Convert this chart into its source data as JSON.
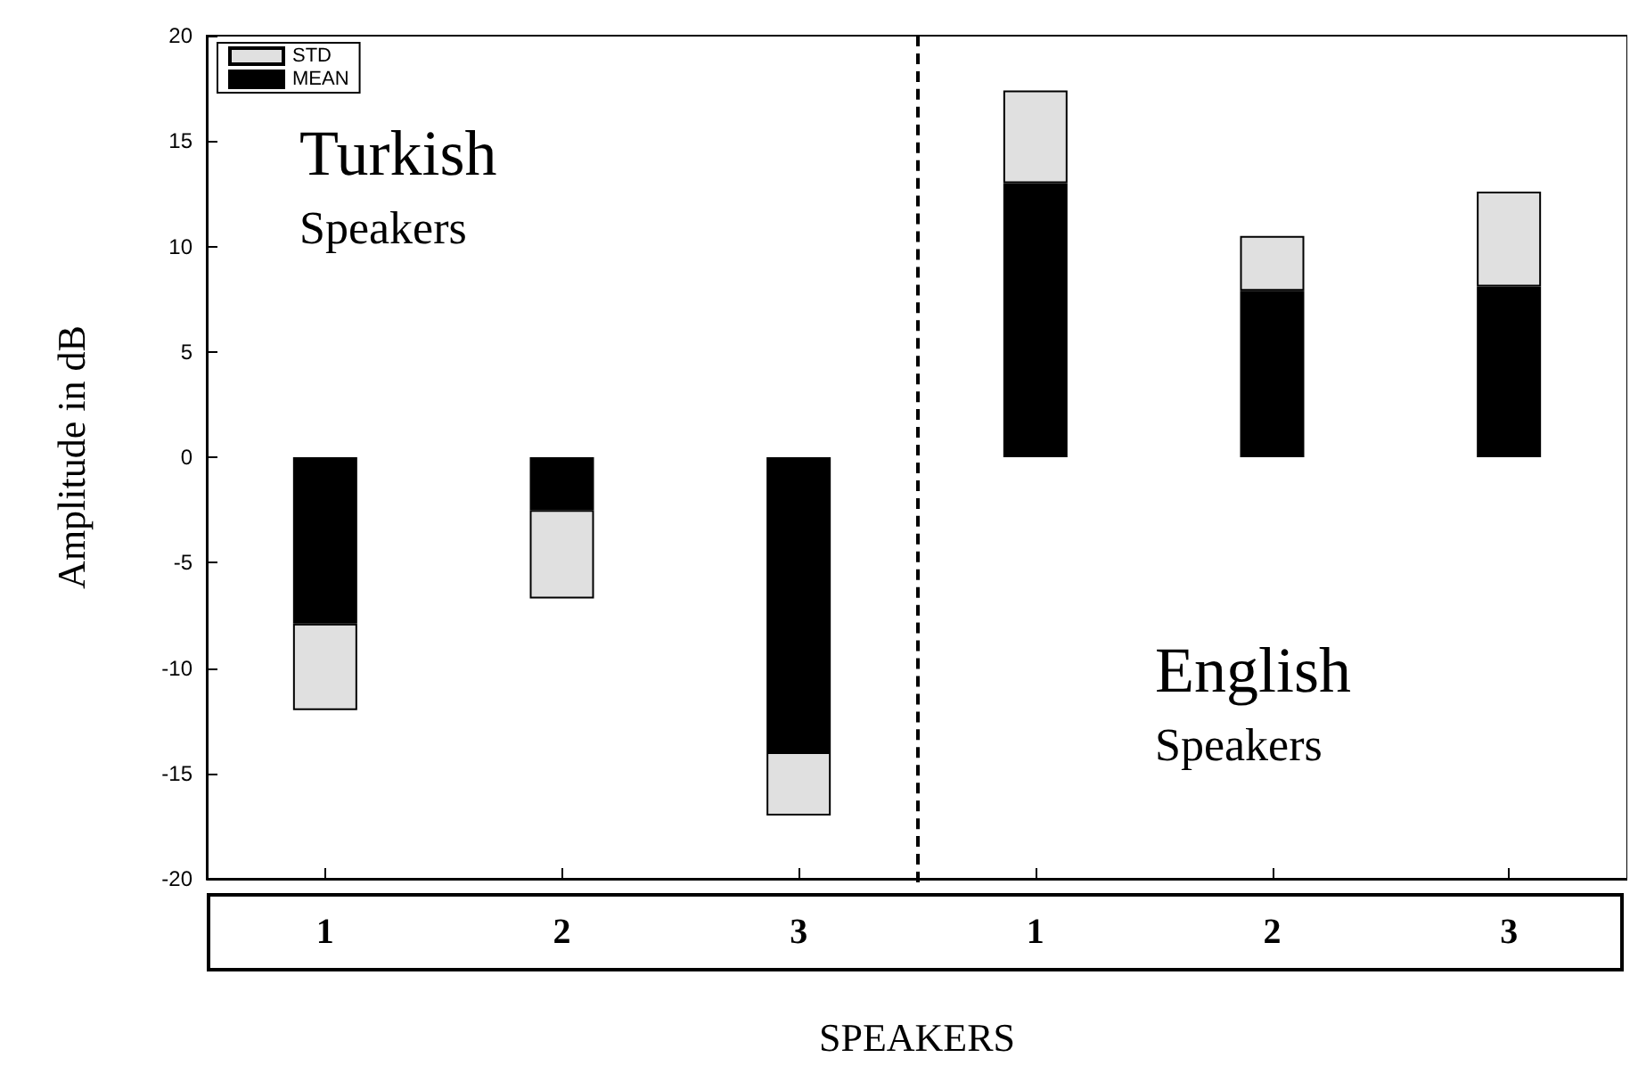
{
  "chart_data": {
    "type": "bar",
    "stacked": true,
    "categories": [
      "1",
      "2",
      "3",
      "1",
      "2",
      "3"
    ],
    "xlabel": "SPEAKERS",
    "ylabel": "Amplitude in dB",
    "ylim": [
      -20,
      20
    ],
    "yticks": [
      -20,
      -15,
      -10,
      -5,
      0,
      5,
      10,
      15,
      20
    ],
    "series": [
      {
        "name": "MEAN",
        "color": "#000000",
        "values": [
          -7.9,
          -2.5,
          -14.0,
          13.0,
          7.9,
          8.1
        ]
      },
      {
        "name": "STD",
        "color": "#e0e0e0",
        "values": [
          -4.1,
          -4.2,
          -3.0,
          4.4,
          2.6,
          4.5
        ]
      }
    ],
    "annotations": [
      "Turkish Speakers",
      "English Speakers"
    ],
    "legend": "top left",
    "grid": false
  }
}
